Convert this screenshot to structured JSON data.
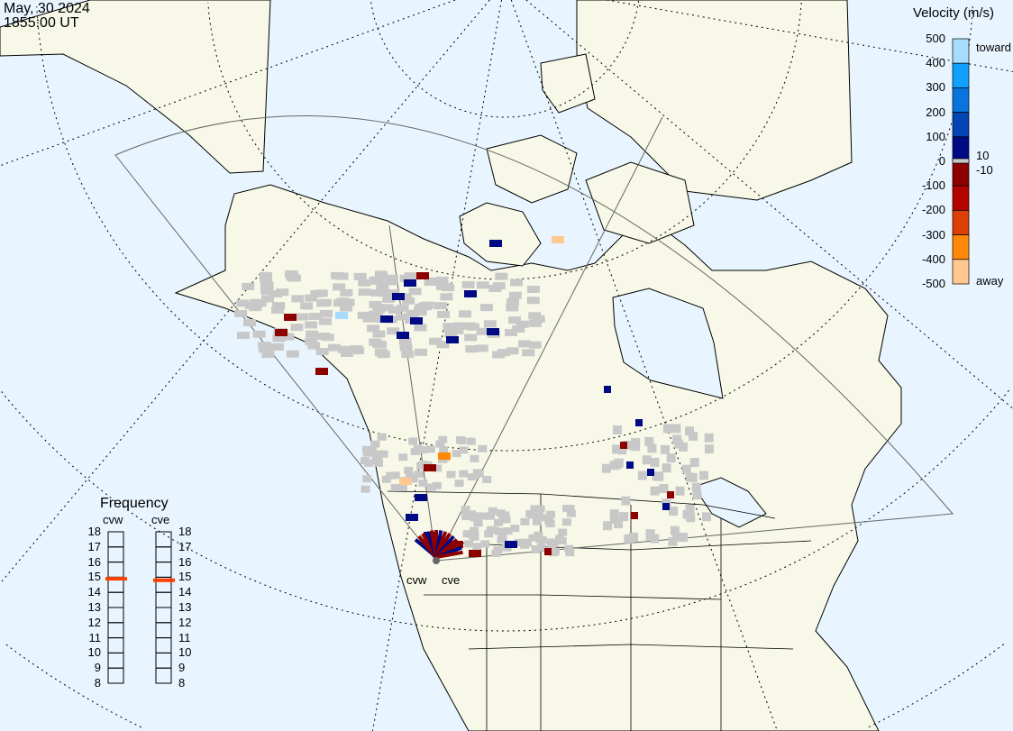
{
  "header": {
    "date": "May, 30 2024",
    "time": "1855:00 UT"
  },
  "colorbar": {
    "title": "Velocity (m/s)",
    "ticks": [
      "500",
      "400",
      "300",
      "200",
      "100",
      "0",
      "-100",
      "-200",
      "-300",
      "-400",
      "-500"
    ],
    "toward_label": "toward",
    "away_label": "away",
    "ground_scatter_labels": [
      "10",
      "-10"
    ],
    "colors": [
      "#a8dcff",
      "#10a0ff",
      "#0874dc",
      "#0444b4",
      "#000a84",
      "#8c0000",
      "#b40400",
      "#dc4004",
      "#ff8808",
      "#ffc890"
    ],
    "ground_scatter_color": "#c8c8c8"
  },
  "frequency": {
    "title": "Frequency",
    "unit_range": [
      8,
      18
    ],
    "ticks": [
      "18",
      "17",
      "16",
      "15",
      "14",
      "13",
      "12",
      "11",
      "10",
      "9",
      "8"
    ],
    "radars": [
      {
        "name": "cvw",
        "value": 14.9
      },
      {
        "name": "cve",
        "value": 14.8
      }
    ],
    "marker_color": "#ff4000"
  },
  "map": {
    "radar_labels": [
      "cvw",
      "cve"
    ],
    "land_color": "#f8f8e8",
    "ocean_color": "#e8f5ff"
  }
}
